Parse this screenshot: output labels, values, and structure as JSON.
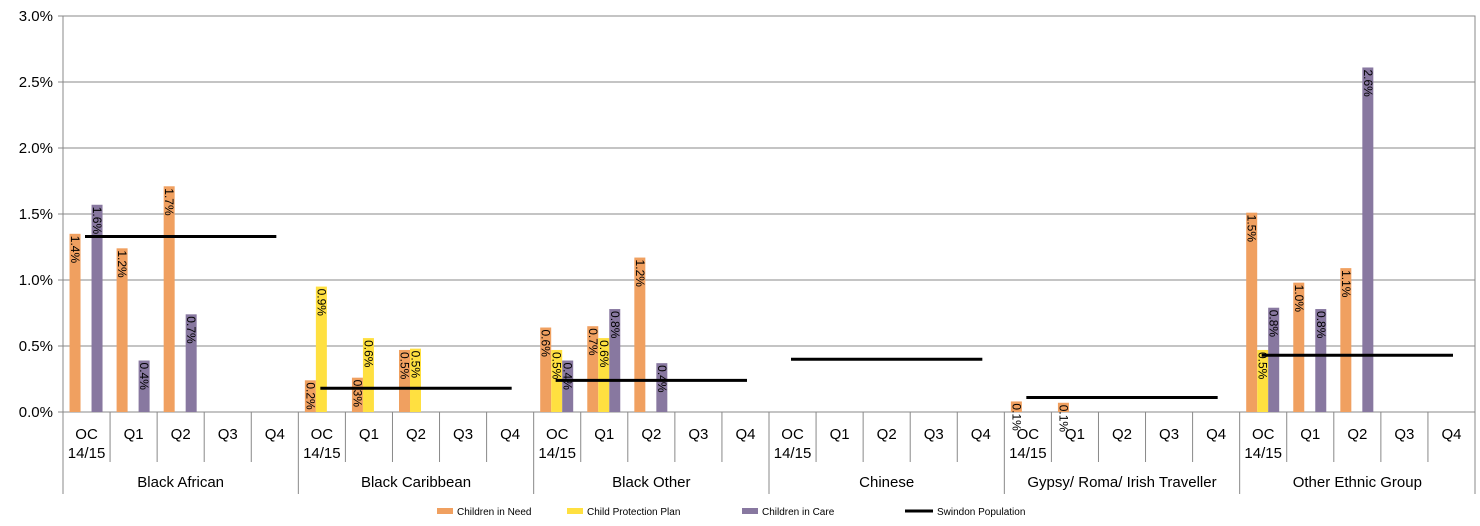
{
  "chart_data": {
    "type": "bar",
    "title": "",
    "xlabel": "",
    "ylabel": "",
    "ylim": [
      0,
      3.0
    ],
    "yticks": [
      "0.0%",
      "0.5%",
      "1.0%",
      "1.5%",
      "2.0%",
      "2.5%",
      "3.0%"
    ],
    "grid": true,
    "legend_position": "bottom",
    "groups": [
      {
        "name": "Black African",
        "quarters": [
          "OC 14/15",
          "Q1",
          "Q2",
          "Q3",
          "Q4"
        ],
        "cin": [
          1.35,
          1.24,
          1.71,
          null,
          null
        ],
        "cpp": [
          null,
          null,
          null,
          null,
          null
        ],
        "cic": [
          1.57,
          0.39,
          0.74,
          null,
          null
        ],
        "labels": {
          "cin": [
            "1.4%",
            "1.2%",
            "1.7%",
            "",
            ""
          ],
          "cpp": [
            "",
            "",
            "",
            "",
            ""
          ],
          "cic": [
            "1.6%",
            "0.4%",
            "0.7%",
            "",
            ""
          ]
        },
        "population": 1.33
      },
      {
        "name": "Black Caribbean",
        "quarters": [
          "OC 14/15",
          "Q1",
          "Q2",
          "Q3",
          "Q4"
        ],
        "cin": [
          0.24,
          0.26,
          0.47,
          null,
          null
        ],
        "cpp": [
          0.95,
          0.56,
          0.48,
          null,
          null
        ],
        "cic": [
          null,
          null,
          null,
          null,
          null
        ],
        "labels": {
          "cin": [
            "0.2%",
            "0.3%",
            "0.5%",
            "",
            ""
          ],
          "cpp": [
            "0.9%",
            "0.6%",
            "0.5%",
            "",
            ""
          ],
          "cic": [
            "",
            "",
            "",
            "",
            ""
          ]
        },
        "population": 0.18
      },
      {
        "name": "Black Other",
        "quarters": [
          "OC 14/15",
          "Q1",
          "Q2",
          "Q3",
          "Q4"
        ],
        "cin": [
          0.64,
          0.65,
          1.17,
          null,
          null
        ],
        "cpp": [
          0.47,
          0.56,
          null,
          null,
          null
        ],
        "cic": [
          0.39,
          0.78,
          0.37,
          null,
          null
        ],
        "labels": {
          "cin": [
            "0.6%",
            "0.7%",
            "1.2%",
            "",
            ""
          ],
          "cpp": [
            "0.5%",
            "0.6%",
            "",
            "",
            ""
          ],
          "cic": [
            "0.4%",
            "0.8%",
            "0.4%",
            "",
            ""
          ]
        },
        "population": 0.24
      },
      {
        "name": "Chinese",
        "quarters": [
          "OC 14/15",
          "Q1",
          "Q2",
          "Q3",
          "Q4"
        ],
        "cin": [
          null,
          null,
          null,
          null,
          null
        ],
        "cpp": [
          null,
          null,
          null,
          null,
          null
        ],
        "cic": [
          null,
          null,
          null,
          null,
          null
        ],
        "labels": {
          "cin": [
            "",
            "",
            "",
            "",
            ""
          ],
          "cpp": [
            "",
            "",
            "",
            "",
            ""
          ],
          "cic": [
            "",
            "",
            "",
            "",
            ""
          ]
        },
        "population": 0.4
      },
      {
        "name": "Gypsy/ Roma/ Irish Traveller",
        "quarters": [
          "OC 14/15",
          "Q1",
          "Q2",
          "Q3",
          "Q4"
        ],
        "cin": [
          0.08,
          0.07,
          null,
          null,
          null
        ],
        "cpp": [
          null,
          null,
          null,
          null,
          null
        ],
        "cic": [
          null,
          null,
          null,
          null,
          null
        ],
        "labels": {
          "cin": [
            "0.1%",
            "0.1%",
            "",
            "",
            ""
          ],
          "cpp": [
            "",
            "",
            "",
            "",
            ""
          ],
          "cic": [
            "",
            "",
            "",
            "",
            ""
          ]
        },
        "population": 0.11
      },
      {
        "name": "Other Ethnic Group",
        "quarters": [
          "OC 14/15",
          "Q1",
          "Q2",
          "Q3",
          "Q4"
        ],
        "cin": [
          1.51,
          0.98,
          1.09,
          null,
          null
        ],
        "cpp": [
          0.47,
          null,
          null,
          null,
          null
        ],
        "cic": [
          0.79,
          0.78,
          2.61,
          null,
          null
        ],
        "labels": {
          "cin": [
            "1.5%",
            "1.0%",
            "1.1%",
            "",
            ""
          ],
          "cpp": [
            "0.5%",
            "",
            "",
            "",
            ""
          ],
          "cic": [
            "0.8%",
            "0.8%",
            "2.6%",
            "",
            ""
          ]
        },
        "population": 0.43
      }
    ],
    "series": [
      {
        "key": "cin",
        "name": "Children in Need",
        "color": "#F0A060"
      },
      {
        "key": "cpp",
        "name": "Child Protection Plan",
        "color": "#FFE040"
      },
      {
        "key": "cic",
        "name": "Children in Care",
        "color": "#8878A0"
      },
      {
        "key": "population",
        "name": "Swindon Population",
        "color": "#000000"
      }
    ]
  }
}
